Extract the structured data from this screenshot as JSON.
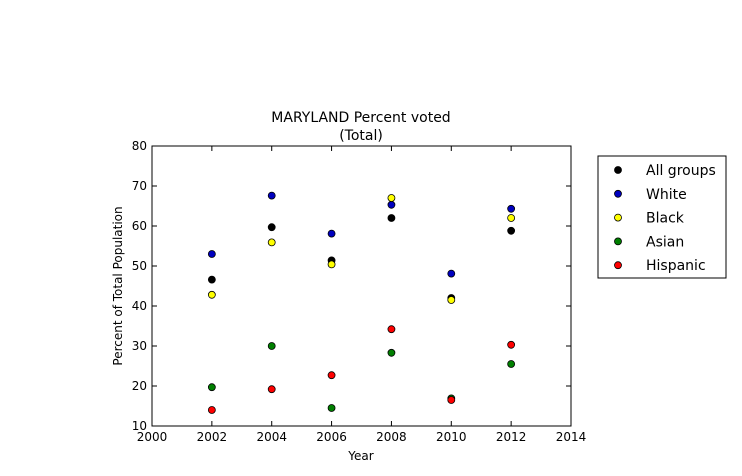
{
  "chart_data": {
    "type": "scatter",
    "title": "MARYLAND Percent voted",
    "subtitle": "(Total)",
    "xlabel": "Year",
    "ylabel": "Percent of Total Population",
    "xlim": [
      2000,
      2014
    ],
    "ylim": [
      10,
      80
    ],
    "xticks": [
      2000,
      2002,
      2004,
      2006,
      2008,
      2010,
      2012,
      2014
    ],
    "yticks": [
      10,
      20,
      30,
      40,
      50,
      60,
      70,
      80
    ],
    "grid": false,
    "legend_position": "outside-right",
    "x": [
      2002,
      2004,
      2006,
      2008,
      2010,
      2012
    ],
    "series": [
      {
        "name": "All groups",
        "color": "#000000",
        "values": [
          46.6,
          59.7,
          51.4,
          62.0,
          42.0,
          58.8
        ]
      },
      {
        "name": "White",
        "color": "#0000bf",
        "values": [
          53.0,
          67.6,
          58.1,
          65.3,
          48.1,
          64.3
        ]
      },
      {
        "name": "Black",
        "color": "#ffff00",
        "values": [
          42.8,
          55.9,
          50.4,
          67.0,
          41.5,
          62.0
        ]
      },
      {
        "name": "Asian",
        "color": "#007f00",
        "values": [
          19.7,
          30.0,
          14.5,
          28.3,
          16.9,
          25.5
        ]
      },
      {
        "name": "Hispanic",
        "color": "#ff0000",
        "values": [
          14.0,
          19.2,
          22.7,
          34.2,
          16.5,
          30.3
        ]
      }
    ]
  }
}
